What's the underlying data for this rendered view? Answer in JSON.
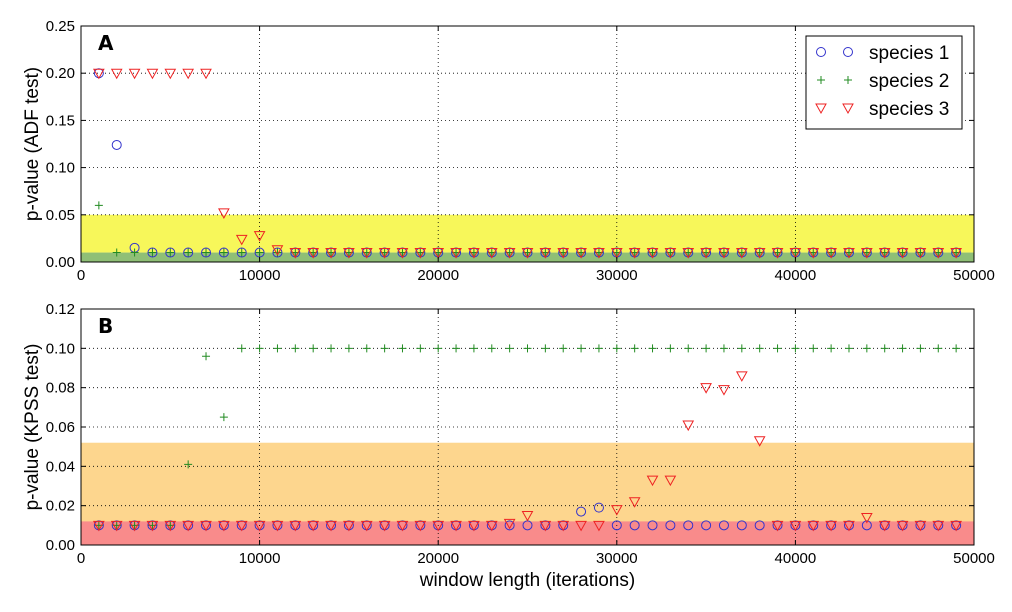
{
  "chart_data": [
    {
      "type": "scatter",
      "panel_label": "A",
      "xlabel": "",
      "ylabel": "p-value (ADF test)",
      "xlim": [
        0,
        50000
      ],
      "ylim": [
        0,
        0.25
      ],
      "xticks": [
        "0",
        "10000",
        "20000",
        "30000",
        "40000",
        "50000"
      ],
      "yticks": [
        "0.00",
        "0.05",
        "0.10",
        "0.15",
        "0.20",
        "0.25"
      ],
      "grid": true,
      "legend_position": "top-right",
      "bands": [
        {
          "y0": 0.01,
          "y1": 0.05,
          "color": "#f7f75a"
        },
        {
          "y0": 0.0,
          "y1": 0.01,
          "color": "#8fbf76"
        }
      ],
      "series": [
        {
          "name": "species 1",
          "marker": "circle",
          "color": "#3333cc",
          "x": [
            1000,
            2000,
            3000,
            4000,
            5000,
            6000,
            7000,
            8000,
            9000,
            10000,
            11000,
            12000,
            13000,
            14000,
            15000,
            16000,
            17000,
            18000,
            19000,
            20000,
            21000,
            22000,
            23000,
            24000,
            25000,
            26000,
            27000,
            28000,
            29000,
            30000,
            31000,
            32000,
            33000,
            34000,
            35000,
            36000,
            37000,
            38000,
            39000,
            40000,
            41000,
            42000,
            43000,
            44000,
            45000,
            46000,
            47000,
            48000,
            49000
          ],
          "y": [
            0.2,
            0.124,
            0.015,
            0.01,
            0.01,
            0.01,
            0.01,
            0.01,
            0.01,
            0.01,
            0.01,
            0.01,
            0.01,
            0.01,
            0.01,
            0.01,
            0.01,
            0.01,
            0.01,
            0.01,
            0.01,
            0.01,
            0.01,
            0.01,
            0.01,
            0.01,
            0.01,
            0.01,
            0.01,
            0.01,
            0.01,
            0.01,
            0.01,
            0.01,
            0.01,
            0.01,
            0.01,
            0.01,
            0.01,
            0.01,
            0.01,
            0.01,
            0.01,
            0.01,
            0.01,
            0.01,
            0.01,
            0.01,
            0.01
          ]
        },
        {
          "name": "species 2",
          "marker": "plus",
          "color": "#228b22",
          "x": [
            1000,
            2000,
            3000,
            4000,
            5000,
            6000,
            7000,
            8000,
            9000,
            10000,
            11000,
            12000,
            13000,
            14000,
            15000,
            16000,
            17000,
            18000,
            19000,
            20000,
            21000,
            22000,
            23000,
            24000,
            25000,
            26000,
            27000,
            28000,
            29000,
            30000,
            31000,
            32000,
            33000,
            34000,
            35000,
            36000,
            37000,
            38000,
            39000,
            40000,
            41000,
            42000,
            43000,
            44000,
            45000,
            46000,
            47000,
            48000,
            49000
          ],
          "y": [
            0.06,
            0.01,
            0.01,
            0.01,
            0.01,
            0.01,
            0.01,
            0.01,
            0.01,
            0.01,
            0.01,
            0.01,
            0.01,
            0.01,
            0.01,
            0.01,
            0.01,
            0.01,
            0.01,
            0.01,
            0.01,
            0.01,
            0.01,
            0.01,
            0.01,
            0.01,
            0.01,
            0.01,
            0.01,
            0.01,
            0.01,
            0.01,
            0.01,
            0.01,
            0.01,
            0.01,
            0.01,
            0.01,
            0.01,
            0.01,
            0.01,
            0.01,
            0.01,
            0.01,
            0.01,
            0.01,
            0.01,
            0.01,
            0.01
          ]
        },
        {
          "name": "species 3",
          "marker": "triangle-down",
          "color": "#ee2222",
          "x": [
            1000,
            2000,
            3000,
            4000,
            5000,
            6000,
            7000,
            8000,
            9000,
            10000,
            11000,
            12000,
            13000,
            14000,
            15000,
            16000,
            17000,
            18000,
            19000,
            20000,
            21000,
            22000,
            23000,
            24000,
            25000,
            26000,
            27000,
            28000,
            29000,
            30000,
            31000,
            32000,
            33000,
            34000,
            35000,
            36000,
            37000,
            38000,
            39000,
            40000,
            41000,
            42000,
            43000,
            44000,
            45000,
            46000,
            47000,
            48000,
            49000
          ],
          "y": [
            0.2,
            0.2,
            0.2,
            0.2,
            0.2,
            0.2,
            0.2,
            0.052,
            0.024,
            0.028,
            0.013,
            0.01,
            0.01,
            0.01,
            0.01,
            0.01,
            0.01,
            0.01,
            0.01,
            0.01,
            0.01,
            0.01,
            0.01,
            0.01,
            0.01,
            0.01,
            0.01,
            0.01,
            0.01,
            0.01,
            0.01,
            0.01,
            0.01,
            0.01,
            0.01,
            0.01,
            0.01,
            0.01,
            0.01,
            0.01,
            0.01,
            0.01,
            0.01,
            0.01,
            0.01,
            0.01,
            0.01,
            0.01,
            0.01
          ]
        }
      ]
    },
    {
      "type": "scatter",
      "panel_label": "B",
      "xlabel": "window length (iterations)",
      "ylabel": "p-value (KPSS test)",
      "xlim": [
        0,
        50000
      ],
      "ylim": [
        0,
        0.12
      ],
      "xticks": [
        "0",
        "10000",
        "20000",
        "30000",
        "40000",
        "50000"
      ],
      "yticks": [
        "0.00",
        "0.02",
        "0.04",
        "0.06",
        "0.08",
        "0.10",
        "0.12"
      ],
      "grid": true,
      "bands": [
        {
          "y0": 0.01,
          "y1": 0.052,
          "color": "#fdd68e"
        },
        {
          "y0": 0.0,
          "y1": 0.012,
          "color": "#f98b8b"
        }
      ],
      "series": [
        {
          "name": "species 1",
          "marker": "circle",
          "color": "#3333cc",
          "x": [
            1000,
            2000,
            3000,
            4000,
            5000,
            6000,
            7000,
            8000,
            9000,
            10000,
            11000,
            12000,
            13000,
            14000,
            15000,
            16000,
            17000,
            18000,
            19000,
            20000,
            21000,
            22000,
            23000,
            24000,
            25000,
            26000,
            27000,
            28000,
            29000,
            30000,
            31000,
            32000,
            33000,
            34000,
            35000,
            36000,
            37000,
            38000,
            39000,
            40000,
            41000,
            42000,
            43000,
            44000,
            45000,
            46000,
            47000,
            48000,
            49000
          ],
          "y": [
            0.01,
            0.01,
            0.01,
            0.01,
            0.01,
            0.01,
            0.01,
            0.01,
            0.01,
            0.01,
            0.01,
            0.01,
            0.01,
            0.01,
            0.01,
            0.01,
            0.01,
            0.01,
            0.01,
            0.01,
            0.01,
            0.01,
            0.01,
            0.01,
            0.01,
            0.01,
            0.01,
            0.017,
            0.019,
            0.01,
            0.01,
            0.01,
            0.01,
            0.01,
            0.01,
            0.01,
            0.01,
            0.01,
            0.01,
            0.01,
            0.01,
            0.01,
            0.01,
            0.01,
            0.01,
            0.01,
            0.01,
            0.01,
            0.01
          ]
        },
        {
          "name": "species 2",
          "marker": "plus",
          "color": "#228b22",
          "x": [
            1000,
            2000,
            3000,
            4000,
            5000,
            6000,
            7000,
            8000,
            9000,
            10000,
            11000,
            12000,
            13000,
            14000,
            15000,
            16000,
            17000,
            18000,
            19000,
            20000,
            21000,
            22000,
            23000,
            24000,
            25000,
            26000,
            27000,
            28000,
            29000,
            30000,
            31000,
            32000,
            33000,
            34000,
            35000,
            36000,
            37000,
            38000,
            39000,
            40000,
            41000,
            42000,
            43000,
            44000,
            45000,
            46000,
            47000,
            48000,
            49000
          ],
          "y": [
            0.01,
            0.01,
            0.01,
            0.01,
            0.01,
            0.041,
            0.096,
            0.065,
            0.1,
            0.1,
            0.1,
            0.1,
            0.1,
            0.1,
            0.1,
            0.1,
            0.1,
            0.1,
            0.1,
            0.1,
            0.1,
            0.1,
            0.1,
            0.1,
            0.1,
            0.1,
            0.1,
            0.1,
            0.1,
            0.1,
            0.1,
            0.1,
            0.1,
            0.1,
            0.1,
            0.1,
            0.1,
            0.1,
            0.1,
            0.1,
            0.1,
            0.1,
            0.1,
            0.1,
            0.1,
            0.1,
            0.1,
            0.1,
            0.1
          ]
        },
        {
          "name": "species 3",
          "marker": "triangle-down",
          "color": "#ee2222",
          "x": [
            1000,
            2000,
            3000,
            4000,
            5000,
            6000,
            7000,
            8000,
            9000,
            10000,
            11000,
            12000,
            13000,
            14000,
            15000,
            16000,
            17000,
            18000,
            19000,
            20000,
            21000,
            22000,
            23000,
            24000,
            25000,
            26000,
            27000,
            28000,
            29000,
            30000,
            31000,
            32000,
            33000,
            34000,
            35000,
            36000,
            37000,
            38000,
            39000,
            40000,
            41000,
            42000,
            43000,
            44000,
            45000,
            46000,
            47000,
            48000,
            49000
          ],
          "y": [
            0.01,
            0.01,
            0.01,
            0.01,
            0.01,
            0.01,
            0.01,
            0.01,
            0.01,
            0.01,
            0.01,
            0.01,
            0.01,
            0.01,
            0.01,
            0.01,
            0.01,
            0.01,
            0.01,
            0.01,
            0.01,
            0.01,
            0.01,
            0.011,
            0.015,
            0.01,
            0.01,
            0.01,
            0.01,
            0.018,
            0.022,
            0.033,
            0.033,
            0.061,
            0.08,
            0.079,
            0.086,
            0.053,
            0.01,
            0.01,
            0.01,
            0.01,
            0.01,
            0.014,
            0.01,
            0.01,
            0.01,
            0.01,
            0.01
          ]
        }
      ]
    }
  ]
}
